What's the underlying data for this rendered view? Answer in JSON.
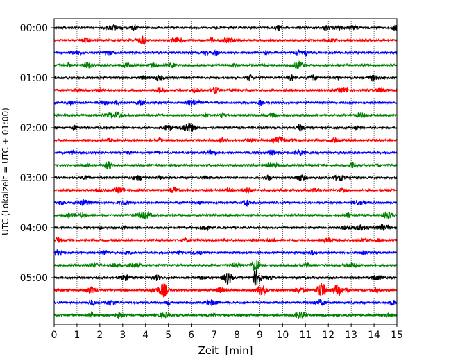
{
  "chart_data": {
    "type": "line",
    "title": "",
    "xlabel": "Zeit  [min]",
    "ylabel": "UTC (Lokalzeit = UTC + 01:00)",
    "xlim": [
      0,
      15
    ],
    "x_ticks": [
      "0",
      "1",
      "2",
      "3",
      "4",
      "5",
      "6",
      "7",
      "8",
      "9",
      "10",
      "11",
      "12",
      "13",
      "14",
      "15"
    ],
    "y_tick_labels": [
      "00:00",
      "01:00",
      "02:00",
      "03:00",
      "04:00",
      "05:00"
    ],
    "row_minutes": 15,
    "grid": "vertical dotted lines at each minute",
    "legend": "none",
    "series_colors": [
      "#000000",
      "#ff0000",
      "#0000ff",
      "#008000"
    ],
    "rows": [
      {
        "start": "00:00"
      },
      {
        "start": "00:15"
      },
      {
        "start": "00:30"
      },
      {
        "start": "00:45"
      },
      {
        "start": "01:00"
      },
      {
        "start": "01:15"
      },
      {
        "start": "01:30"
      },
      {
        "start": "01:45"
      },
      {
        "start": "02:00"
      },
      {
        "start": "02:15"
      },
      {
        "start": "02:30"
      },
      {
        "start": "02:45"
      },
      {
        "start": "03:00"
      },
      {
        "start": "03:15"
      },
      {
        "start": "03:30"
      },
      {
        "start": "03:45"
      },
      {
        "start": "04:00"
      },
      {
        "start": "04:15"
      },
      {
        "start": "04:30"
      },
      {
        "start": "04:45"
      },
      {
        "start": "05:00"
      },
      {
        "start": "05:15"
      },
      {
        "start": "05:30"
      },
      {
        "start": "05:45"
      }
    ],
    "events": [
      {
        "row": 19,
        "minute": 8.8
      },
      {
        "row": 20,
        "minute": 7.6
      },
      {
        "row": 20,
        "minute": 8.9
      },
      {
        "row": 21,
        "minute": 4.8
      },
      {
        "row": 21,
        "minute": 9.1
      },
      {
        "row": 21,
        "minute": 11.7
      },
      {
        "row": 21,
        "minute": 12.4
      }
    ]
  }
}
